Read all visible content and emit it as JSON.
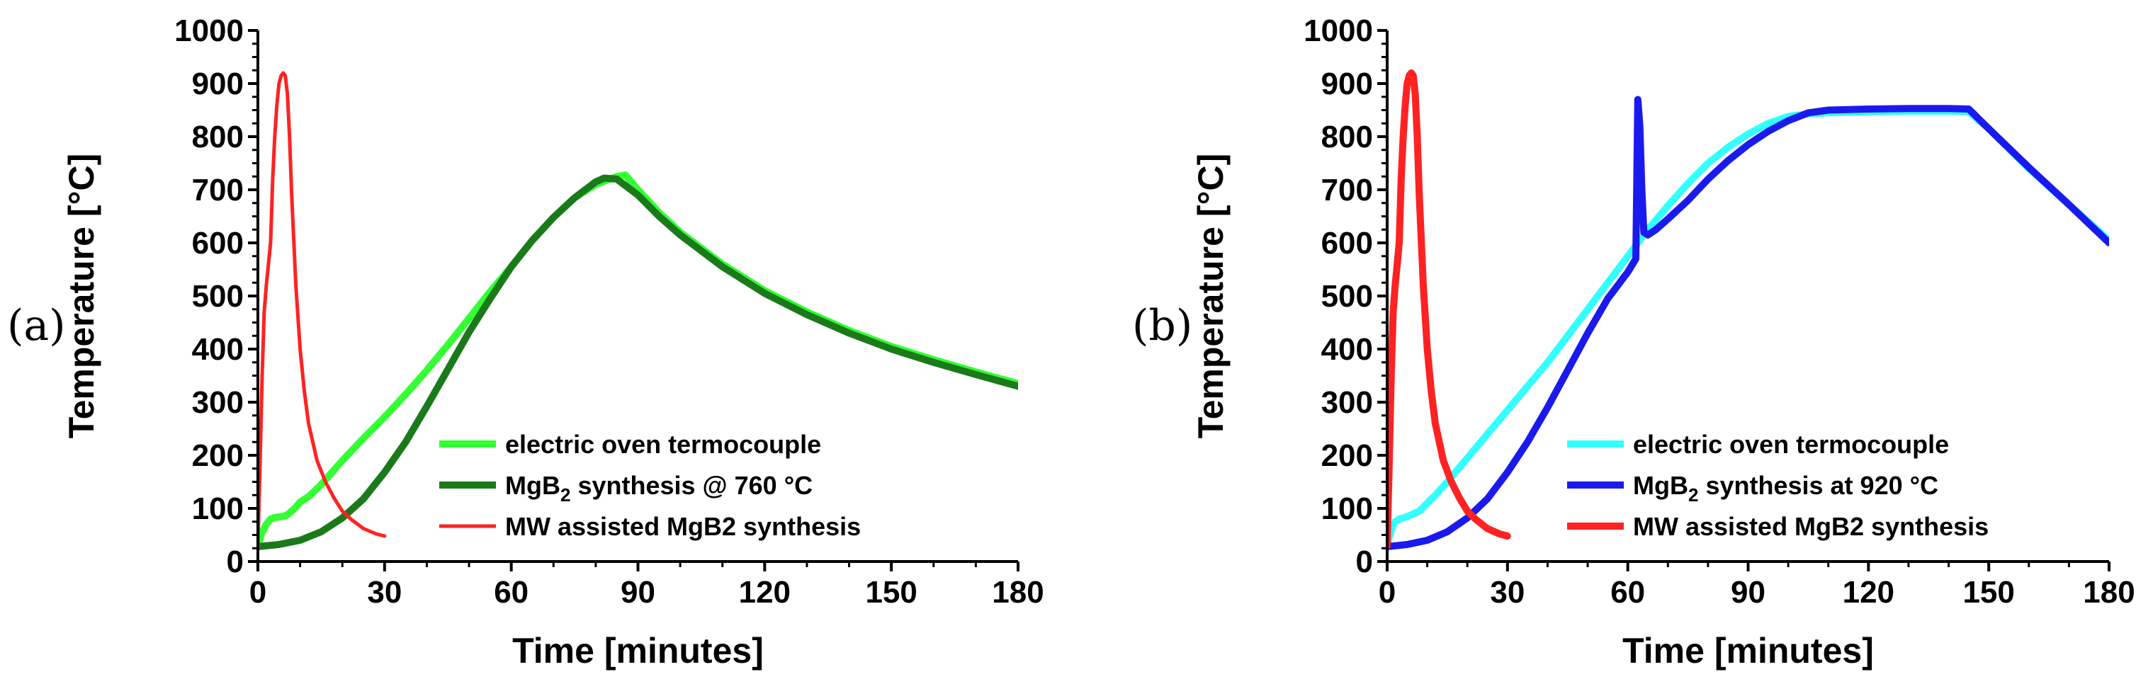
{
  "chart_data": [
    {
      "type": "line",
      "panel_label": "(a)",
      "title": "",
      "xlabel": "Time [minutes]",
      "ylabel": "Temperature [°C]",
      "xlim": [
        0,
        180
      ],
      "ylim": [
        0,
        1000
      ],
      "xticks": [
        "0",
        "30",
        "60",
        "90",
        "120",
        "150",
        "180"
      ],
      "yticks": [
        "0",
        "100",
        "200",
        "300",
        "400",
        "500",
        "600",
        "700",
        "800",
        "900",
        "1000"
      ],
      "grid": false,
      "legend_position": "bottom-right",
      "series": [
        {
          "name": "electric oven termocouple",
          "legend_parts": [
            "electric oven termocouple"
          ],
          "color": "#33ff33",
          "width": "thick",
          "x": [
            0,
            1,
            2,
            3,
            4,
            5,
            6,
            7,
            8,
            9,
            10,
            12,
            15,
            20,
            25,
            30,
            35,
            40,
            45,
            50,
            55,
            60,
            65,
            70,
            75,
            80,
            85,
            87,
            90,
            95,
            100,
            110,
            120,
            130,
            140,
            150,
            160,
            170,
            180
          ],
          "y": [
            30,
            55,
            70,
            80,
            83,
            84,
            85,
            88,
            95,
            102,
            112,
            122,
            145,
            190,
            232,
            272,
            315,
            360,
            408,
            458,
            508,
            555,
            605,
            648,
            685,
            710,
            725,
            728,
            700,
            657,
            620,
            560,
            510,
            470,
            435,
            405,
            380,
            357,
            335
          ]
        },
        {
          "name": "MgB2 synthesis @ 760 °C",
          "legend_parts": [
            "MgB",
            "2",
            " synthesis @ 760 °C"
          ],
          "color": "#1a7a1a",
          "width": "thick",
          "x": [
            0,
            5,
            10,
            15,
            20,
            25,
            30,
            35,
            40,
            45,
            50,
            55,
            60,
            65,
            70,
            75,
            80,
            82,
            85,
            90,
            95,
            100,
            110,
            120,
            130,
            140,
            150,
            160,
            170,
            180
          ],
          "y": [
            28,
            32,
            40,
            56,
            82,
            118,
            168,
            225,
            292,
            362,
            432,
            495,
            555,
            605,
            648,
            685,
            715,
            722,
            720,
            690,
            650,
            615,
            555,
            505,
            465,
            430,
            400,
            375,
            352,
            330
          ]
        },
        {
          "name": "MW assisted MgB2 synthesis",
          "legend_parts": [
            "MW assisted MgB2 synthesis"
          ],
          "color": "#ff2222",
          "width": "thin",
          "x": [
            0,
            0.5,
            1,
            1.5,
            2,
            2.5,
            3,
            3.5,
            4,
            4.5,
            5,
            5.5,
            6,
            6.5,
            7,
            7.5,
            8,
            9,
            10,
            11,
            12,
            14,
            16,
            18,
            20,
            22,
            25,
            28,
            30
          ],
          "y": [
            30,
            180,
            350,
            470,
            520,
            560,
            600,
            720,
            800,
            860,
            900,
            915,
            920,
            915,
            880,
            800,
            690,
            520,
            400,
            320,
            260,
            190,
            150,
            120,
            95,
            80,
            62,
            52,
            48
          ]
        }
      ]
    },
    {
      "type": "line",
      "panel_label": "(b)",
      "title": "",
      "xlabel": "Time [minutes]",
      "ylabel": "Temperature [°C]",
      "xlim": [
        0,
        180
      ],
      "ylim": [
        0,
        1000
      ],
      "xticks": [
        "0",
        "30",
        "60",
        "90",
        "120",
        "150",
        "180"
      ],
      "yticks": [
        "0",
        "100",
        "200",
        "300",
        "400",
        "500",
        "600",
        "700",
        "800",
        "900",
        "1000"
      ],
      "grid": false,
      "legend_position": "bottom-right",
      "series": [
        {
          "name": "electric oven termocouple",
          "legend_parts": [
            "electric oven termocouple"
          ],
          "color": "#33ffff",
          "width": "thick",
          "x": [
            0,
            1,
            2,
            3,
            4,
            5,
            6,
            8,
            10,
            12,
            15,
            20,
            25,
            30,
            35,
            40,
            45,
            50,
            55,
            60,
            65,
            70,
            75,
            80,
            85,
            90,
            95,
            100,
            105,
            110,
            120,
            130,
            140,
            145,
            150,
            160,
            170,
            180
          ],
          "y": [
            30,
            60,
            75,
            80,
            82,
            85,
            88,
            95,
            110,
            125,
            150,
            195,
            240,
            285,
            330,
            375,
            425,
            475,
            525,
            575,
            625,
            670,
            712,
            750,
            780,
            805,
            825,
            838,
            843,
            845,
            847,
            848,
            848,
            847,
            815,
            740,
            672,
            605
          ]
        },
        {
          "name": "MgB2 synthesis at 920 °C",
          "legend_parts": [
            "MgB",
            "2",
            " synthesis at 920 °C"
          ],
          "color": "#1a1aee",
          "width": "thick",
          "x": [
            0,
            5,
            10,
            15,
            20,
            25,
            30,
            35,
            40,
            45,
            50,
            55,
            60,
            62,
            62.5,
            63,
            63.5,
            64,
            65,
            67,
            70,
            75,
            80,
            85,
            90,
            95,
            100,
            105,
            110,
            120,
            130,
            140,
            145,
            150,
            160,
            170,
            180
          ],
          "y": [
            28,
            32,
            40,
            56,
            82,
            118,
            168,
            225,
            290,
            360,
            430,
            495,
            545,
            570,
            870,
            820,
            700,
            620,
            615,
            625,
            645,
            680,
            720,
            755,
            785,
            810,
            830,
            845,
            850,
            852,
            853,
            853,
            852,
            815,
            742,
            672,
            600
          ]
        },
        {
          "name": "MW assisted MgB2 synthesis",
          "legend_parts": [
            "MW assisted MgB2 synthesis"
          ],
          "color": "#ff2222",
          "width": "thick",
          "x": [
            0,
            0.5,
            1,
            1.5,
            2,
            2.5,
            3,
            3.5,
            4,
            4.5,
            5,
            5.5,
            6,
            6.5,
            7,
            7.5,
            8,
            9,
            10,
            11,
            12,
            14,
            16,
            18,
            20,
            22,
            25,
            28,
            30
          ],
          "y": [
            30,
            180,
            350,
            470,
            520,
            560,
            600,
            720,
            800,
            860,
            900,
            915,
            920,
            915,
            880,
            800,
            690,
            520,
            400,
            320,
            260,
            190,
            150,
            120,
            95,
            80,
            62,
            52,
            48
          ]
        }
      ]
    }
  ]
}
